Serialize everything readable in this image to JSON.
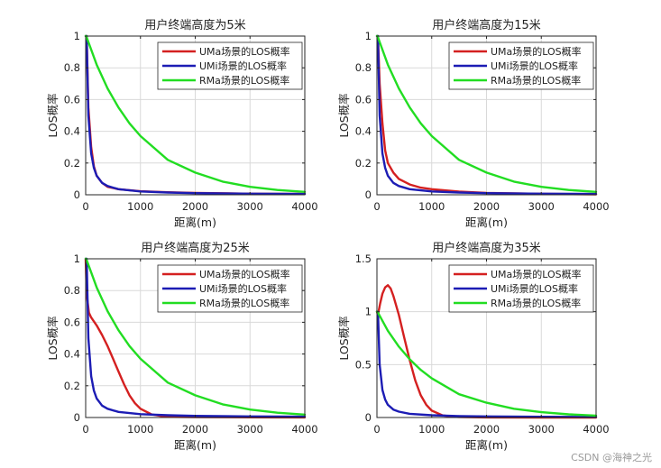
{
  "chart_data": [
    {
      "type": "line",
      "title": "用户终端高度为5米",
      "xlabel": "距离(m)",
      "ylabel": "LOS概率",
      "xlim": [
        0,
        4000
      ],
      "ylim": [
        0,
        1
      ],
      "xticks": [
        "0",
        "1000",
        "2000",
        "3000",
        "4000"
      ],
      "yticks": [
        "0",
        "0.2",
        "0.4",
        "0.6",
        "0.8",
        "1"
      ],
      "grid": true,
      "legend_position": "top-right",
      "series": [
        {
          "name": "UMa场景的LOS概率",
          "color": "#d42020",
          "x": [
            0,
            18,
            50,
            100,
            150,
            200,
            300,
            400,
            600,
            1000,
            1500,
            2000,
            3000,
            4000
          ],
          "y": [
            1,
            1,
            0.55,
            0.3,
            0.18,
            0.12,
            0.075,
            0.05,
            0.035,
            0.022,
            0.016,
            0.012,
            0.007,
            0.005
          ]
        },
        {
          "name": "UMi场景的LOS概率",
          "color": "#1c1cb4",
          "x": [
            0,
            18,
            50,
            100,
            150,
            200,
            300,
            400,
            600,
            1000,
            1500,
            2000,
            3000,
            4000
          ],
          "y": [
            1,
            1,
            0.5,
            0.26,
            0.17,
            0.12,
            0.075,
            0.055,
            0.035,
            0.021,
            0.014,
            0.01,
            0.007,
            0.005
          ]
        },
        {
          "name": "RMa场景的LOS概率",
          "color": "#22dd22",
          "x": [
            0,
            10,
            200,
            400,
            600,
            800,
            1000,
            1500,
            2000,
            2500,
            3000,
            3500,
            4000
          ],
          "y": [
            1,
            1,
            0.82,
            0.67,
            0.55,
            0.45,
            0.37,
            0.22,
            0.14,
            0.083,
            0.05,
            0.03,
            0.018
          ]
        }
      ]
    },
    {
      "type": "line",
      "title": "用户终端高度为15米",
      "xlabel": "距离(m)",
      "ylabel": "LOS概率",
      "xlim": [
        0,
        4000
      ],
      "ylim": [
        0,
        1
      ],
      "xticks": [
        "0",
        "1000",
        "2000",
        "3000",
        "4000"
      ],
      "yticks": [
        "0",
        "0.2",
        "0.4",
        "0.6",
        "0.8",
        "1"
      ],
      "grid": true,
      "legend_position": "top-right",
      "series": [
        {
          "name": "UMa场景的LOS概率",
          "color": "#d42020",
          "x": [
            0,
            18,
            50,
            100,
            150,
            200,
            300,
            400,
            600,
            800,
            1000,
            1500,
            2000,
            3000,
            4000
          ],
          "y": [
            1,
            1,
            0.7,
            0.45,
            0.28,
            0.2,
            0.14,
            0.1,
            0.065,
            0.045,
            0.035,
            0.02,
            0.012,
            0.006,
            0.003
          ]
        },
        {
          "name": "UMi场景的LOS概率",
          "color": "#1c1cb4",
          "x": [
            0,
            18,
            50,
            100,
            150,
            200,
            300,
            400,
            600,
            1000,
            1500,
            2000,
            3000,
            4000
          ],
          "y": [
            1,
            1,
            0.5,
            0.26,
            0.17,
            0.12,
            0.075,
            0.055,
            0.035,
            0.021,
            0.014,
            0.01,
            0.007,
            0.005
          ]
        },
        {
          "name": "RMa场景的LOS概率",
          "color": "#22dd22",
          "x": [
            0,
            10,
            200,
            400,
            600,
            800,
            1000,
            1500,
            2000,
            2500,
            3000,
            3500,
            4000
          ],
          "y": [
            1,
            1,
            0.82,
            0.67,
            0.55,
            0.45,
            0.37,
            0.22,
            0.14,
            0.083,
            0.05,
            0.03,
            0.018
          ]
        }
      ]
    },
    {
      "type": "line",
      "title": "用户终端高度为25米",
      "xlabel": "距离(m)",
      "ylabel": "LOS概率",
      "xlim": [
        0,
        4000
      ],
      "ylim": [
        0,
        1
      ],
      "xticks": [
        "0",
        "1000",
        "2000",
        "3000",
        "4000"
      ],
      "yticks": [
        "0",
        "0.2",
        "0.4",
        "0.6",
        "0.8",
        "1"
      ],
      "grid": true,
      "legend_position": "top-right",
      "series": [
        {
          "name": "UMa场景的LOS概率",
          "color": "#d42020",
          "x": [
            0,
            18,
            60,
            100,
            200,
            300,
            400,
            500,
            600,
            700,
            800,
            900,
            1000,
            1200,
            1400,
            1600,
            2000,
            3000,
            4000
          ],
          "y": [
            1,
            0.78,
            0.66,
            0.63,
            0.58,
            0.52,
            0.45,
            0.37,
            0.29,
            0.21,
            0.14,
            0.09,
            0.055,
            0.02,
            0.008,
            0.004,
            0.002,
            0.001,
            0.0005
          ]
        },
        {
          "name": "UMi场景的LOS概率",
          "color": "#1c1cb4",
          "x": [
            0,
            18,
            50,
            100,
            150,
            200,
            300,
            400,
            600,
            1000,
            1500,
            2000,
            3000,
            4000
          ],
          "y": [
            1,
            1,
            0.5,
            0.26,
            0.17,
            0.12,
            0.075,
            0.055,
            0.035,
            0.021,
            0.014,
            0.01,
            0.007,
            0.005
          ]
        },
        {
          "name": "RMa场景的LOS概率",
          "color": "#22dd22",
          "x": [
            0,
            10,
            200,
            400,
            600,
            800,
            1000,
            1500,
            2000,
            2500,
            3000,
            3500,
            4000
          ],
          "y": [
            1,
            1,
            0.82,
            0.67,
            0.55,
            0.45,
            0.37,
            0.22,
            0.14,
            0.083,
            0.05,
            0.03,
            0.018
          ]
        }
      ]
    },
    {
      "type": "line",
      "title": "用户终端高度为35米",
      "xlabel": "距离(m)",
      "ylabel": "LOS概率",
      "xlim": [
        0,
        4000
      ],
      "ylim": [
        0,
        1.5
      ],
      "xticks": [
        "0",
        "1000",
        "2000",
        "3000",
        "4000"
      ],
      "yticks": [
        "0",
        "0.5",
        "1",
        "1.5"
      ],
      "grid": true,
      "legend_position": "top-right",
      "series": [
        {
          "name": "UMa场景的LOS概率",
          "color": "#d42020",
          "x": [
            0,
            18,
            60,
            100,
            150,
            200,
            250,
            300,
            400,
            500,
            600,
            700,
            800,
            900,
            1000,
            1200,
            1400,
            1600,
            2000,
            3000,
            4000
          ],
          "y": [
            1,
            0.97,
            1.08,
            1.17,
            1.23,
            1.25,
            1.22,
            1.15,
            0.97,
            0.75,
            0.54,
            0.35,
            0.21,
            0.12,
            0.065,
            0.02,
            0.007,
            0.003,
            0.001,
            0,
            0
          ]
        },
        {
          "name": "UMi场景的LOS概率",
          "color": "#1c1cb4",
          "x": [
            0,
            18,
            50,
            100,
            150,
            200,
            300,
            400,
            600,
            1000,
            1500,
            2000,
            3000,
            4000
          ],
          "y": [
            1,
            1,
            0.5,
            0.26,
            0.17,
            0.12,
            0.075,
            0.055,
            0.035,
            0.021,
            0.014,
            0.01,
            0.007,
            0.005
          ]
        },
        {
          "name": "RMa场景的LOS概率",
          "color": "#22dd22",
          "x": [
            0,
            10,
            200,
            400,
            600,
            800,
            1000,
            1500,
            2000,
            2500,
            3000,
            3500,
            4000
          ],
          "y": [
            1,
            1,
            0.82,
            0.67,
            0.55,
            0.45,
            0.37,
            0.22,
            0.14,
            0.083,
            0.05,
            0.03,
            0.018
          ]
        }
      ]
    }
  ],
  "watermark": "CSDN @海神之光"
}
